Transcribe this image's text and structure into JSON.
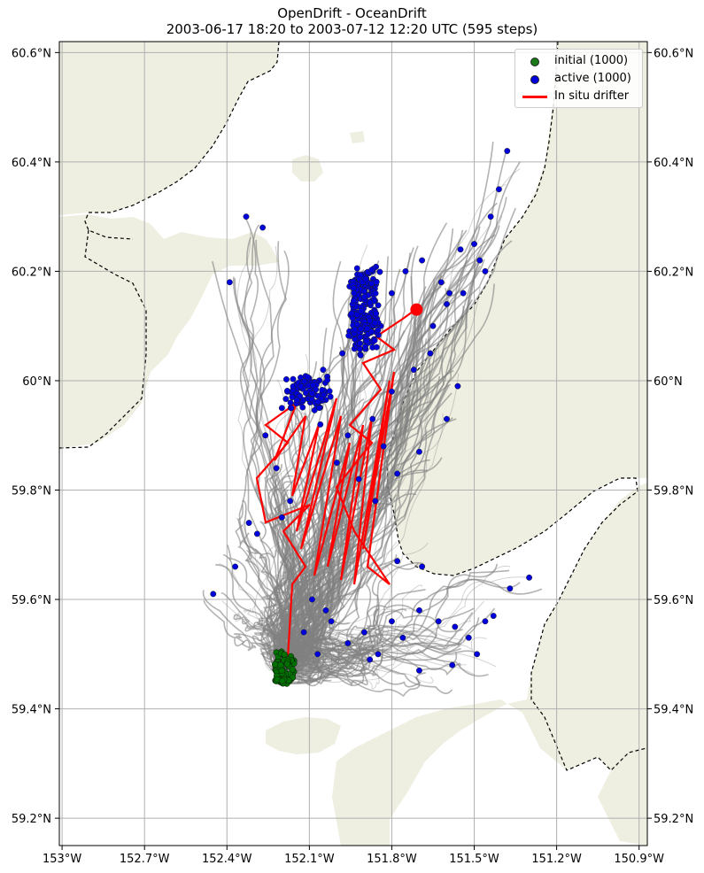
{
  "title": {
    "line1": "OpenDrift - OceanDrift",
    "line2": "2003-06-17 18:20 to 2003-07-12 12:20 UTC (595 steps)"
  },
  "axes": {
    "x_ticks": [
      "153°W",
      "152.7°W",
      "152.4°W",
      "152.1°W",
      "151.8°W",
      "151.5°W",
      "151.2°W",
      "150.9°W"
    ],
    "x_values": [
      -153.0,
      -152.7,
      -152.4,
      -152.1,
      -151.8,
      -151.5,
      -151.2,
      -150.9
    ],
    "y_ticks": [
      "59.2°N",
      "59.4°N",
      "59.6°N",
      "59.8°N",
      "60°N",
      "60.2°N",
      "60.4°N",
      "60.6°N"
    ],
    "y_values": [
      59.2,
      59.4,
      59.6,
      59.8,
      60.0,
      60.2,
      60.4,
      60.6
    ],
    "lon_range": [
      -153.01,
      -150.87
    ],
    "lat_range": [
      59.15,
      60.62
    ],
    "grid": true
  },
  "legend": {
    "placement": "top-right",
    "items": [
      {
        "label": "initial (1000)",
        "kind": "dot",
        "color": "#006400"
      },
      {
        "label": "active (1000)",
        "kind": "dot",
        "color": "#0000dd"
      },
      {
        "label": "In situ drifter",
        "kind": "line",
        "color": "#ff0000"
      }
    ]
  },
  "colors": {
    "land": "#eeeee1",
    "sea": "#ffffff",
    "trajectory": "#808080",
    "drifter": "#ff0000",
    "initial": "#007000",
    "active": "#0000dd",
    "grid": "#b0b0b0"
  },
  "map_data": {
    "initial_center": [
      -152.19,
      59.475
    ],
    "drifter_start": [
      -152.18,
      59.48
    ],
    "drifter_end": [
      -151.71,
      60.13
    ],
    "active_samples": [
      [
        -152.45,
        59.61
      ],
      [
        -152.37,
        59.66
      ],
      [
        -152.32,
        59.74
      ],
      [
        -152.29,
        59.72
      ],
      [
        -152.33,
        60.3
      ],
      [
        -152.27,
        60.28
      ],
      [
        -152.39,
        60.18
      ],
      [
        -152.0,
        59.85
      ],
      [
        -151.96,
        59.9
      ],
      [
        -151.87,
        59.93
      ],
      [
        -151.8,
        59.98
      ],
      [
        -151.72,
        60.02
      ],
      [
        -151.65,
        60.1
      ],
      [
        -151.59,
        60.16
      ],
      [
        -151.55,
        60.24
      ],
      [
        -151.5,
        60.25
      ],
      [
        -151.44,
        60.3
      ],
      [
        -151.41,
        60.35
      ],
      [
        -151.38,
        60.42
      ],
      [
        -151.46,
        60.2
      ],
      [
        -151.56,
        59.99
      ],
      [
        -151.6,
        59.93
      ],
      [
        -151.7,
        59.87
      ],
      [
        -151.78,
        59.83
      ],
      [
        -151.86,
        59.78
      ],
      [
        -151.92,
        59.82
      ],
      [
        -152.17,
        59.78
      ],
      [
        -152.2,
        59.75
      ],
      [
        -152.02,
        59.56
      ],
      [
        -151.96,
        59.52
      ],
      [
        -151.9,
        59.54
      ],
      [
        -151.85,
        59.5
      ],
      [
        -151.8,
        59.56
      ],
      [
        -151.76,
        59.53
      ],
      [
        -151.7,
        59.58
      ],
      [
        -151.63,
        59.56
      ],
      [
        -151.57,
        59.55
      ],
      [
        -151.52,
        59.53
      ],
      [
        -151.46,
        59.56
      ],
      [
        -151.43,
        59.57
      ],
      [
        -151.37,
        59.62
      ],
      [
        -151.3,
        59.64
      ],
      [
        -151.49,
        59.5
      ],
      [
        -151.58,
        59.48
      ],
      [
        -151.7,
        59.47
      ],
      [
        -151.88,
        59.49
      ],
      [
        -151.78,
        59.67
      ],
      [
        -151.69,
        59.66
      ],
      [
        -152.07,
        59.5
      ],
      [
        -152.12,
        59.54
      ],
      [
        -152.09,
        59.6
      ],
      [
        -152.04,
        59.58
      ],
      [
        -152.14,
        59.96
      ],
      [
        -152.1,
        60.0
      ],
      [
        -152.05,
        60.02
      ],
      [
        -152.18,
        59.98
      ],
      [
        -152.2,
        59.95
      ],
      [
        -151.93,
        60.15
      ],
      [
        -151.9,
        60.18
      ],
      [
        -151.87,
        60.2
      ],
      [
        -151.95,
        60.12
      ],
      [
        -151.84,
        60.1
      ],
      [
        -151.8,
        60.16
      ],
      [
        -151.75,
        60.2
      ],
      [
        -151.69,
        60.22
      ],
      [
        -151.62,
        60.18
      ],
      [
        -151.6,
        60.14
      ],
      [
        -151.66,
        60.05
      ],
      [
        -151.54,
        60.16
      ],
      [
        -151.48,
        60.22
      ],
      [
        -151.98,
        60.05
      ],
      [
        -151.92,
        60.08
      ],
      [
        -152.26,
        59.9
      ],
      [
        -152.22,
        59.84
      ],
      [
        -152.06,
        59.92
      ],
      [
        -151.83,
        59.88
      ]
    ]
  }
}
